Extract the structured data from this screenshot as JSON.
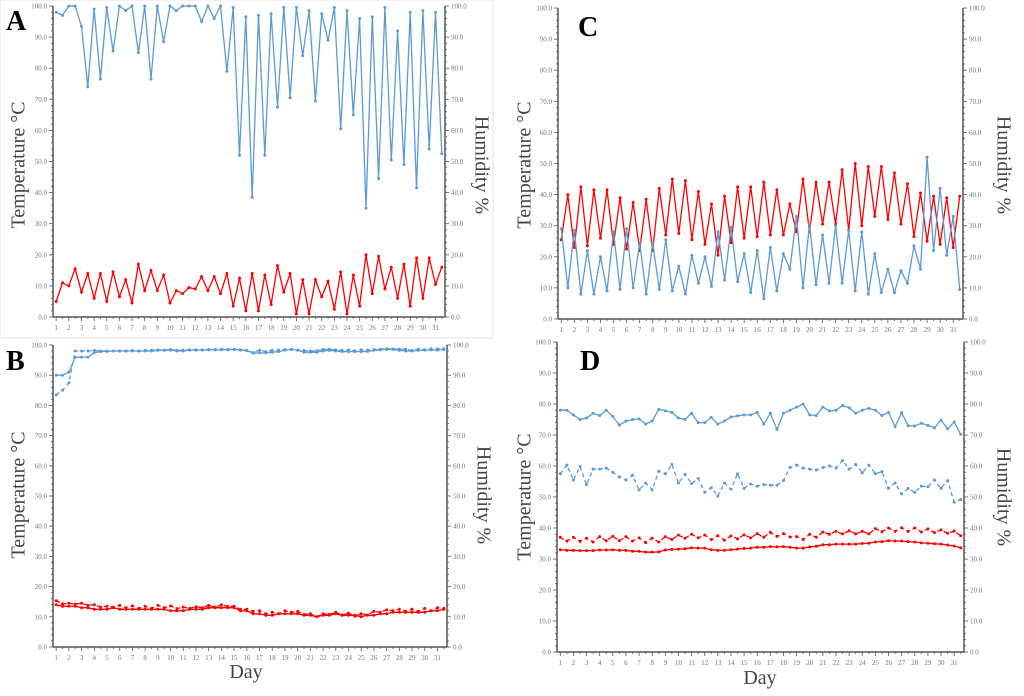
{
  "colors": {
    "humidity": "#5b9bd5",
    "temperature": "#ff0000",
    "axis": "#555555"
  },
  "chart_data": [
    {
      "panel": "A",
      "type": "line",
      "ylabel_left": "Temperature °C",
      "ylabel_right": "Humidity %",
      "xlabel": "",
      "ylim_left": [
        0,
        100
      ],
      "ylim_right": [
        0,
        100
      ],
      "yticks": [
        "0.0",
        "10.0",
        "20.0",
        "30.0",
        "40.0",
        "50.0",
        "60.0",
        "70.0",
        "80.0",
        "90.0",
        "100.0"
      ],
      "x_ticks": [
        1,
        2,
        3,
        4,
        5,
        6,
        7,
        8,
        9,
        10,
        11,
        12,
        13,
        14,
        15,
        16,
        17,
        18,
        19,
        20,
        21,
        22,
        23,
        24,
        25,
        26,
        27,
        28,
        29,
        30,
        31
      ],
      "x_step": 0.5,
      "series": [
        {
          "color": "humidity",
          "style": "solid",
          "axis": "right",
          "values": [
            98,
            97,
            100,
            100,
            93.5,
            74,
            99,
            76.5,
            99.5,
            85.5,
            100,
            98.5,
            100,
            85,
            100,
            76.5,
            100,
            88.5,
            100,
            98.5,
            100,
            100,
            100,
            95,
            100,
            96,
            100,
            79,
            99.5,
            52,
            96.5,
            38.5,
            97,
            52,
            97.5,
            67.5,
            99.5,
            70.5,
            99.5,
            84,
            98.5,
            69.5,
            97.5,
            89,
            99.5,
            60.5,
            98.5,
            65,
            96,
            35,
            96.5,
            44.5,
            99.5,
            50.5,
            92,
            49,
            98,
            41.5,
            98.5,
            54,
            98,
            52.5
          ]
        },
        {
          "color": "temperature",
          "style": "solid",
          "axis": "left",
          "values": [
            5,
            11,
            10,
            15.5,
            8,
            14,
            6,
            14,
            5,
            14.5,
            6.5,
            12,
            4.5,
            17,
            8.5,
            15,
            8.5,
            13.5,
            4.5,
            8.5,
            7.5,
            9.5,
            9,
            13,
            8.5,
            13,
            7.5,
            14,
            3.5,
            12.5,
            2,
            14,
            2,
            13.5,
            4,
            16.5,
            8,
            14,
            1,
            12,
            1,
            12,
            6.5,
            11.5,
            2.5,
            14.5,
            1,
            13.5,
            3.5,
            20,
            7.5,
            19.5,
            9,
            16,
            6,
            17,
            3.5,
            19,
            6,
            19,
            10.5,
            16
          ]
        }
      ]
    },
    {
      "panel": "B",
      "type": "line",
      "ylabel_left": "Temperature °C",
      "ylabel_right": "Humidity %",
      "xlabel": "Day",
      "ylim_left": [
        0,
        100
      ],
      "ylim_right": [
        0,
        100
      ],
      "yticks": [
        "0.0",
        "10.0",
        "20.0",
        "30.0",
        "40.0",
        "50.0",
        "60.0",
        "70.0",
        "80.0",
        "90.0",
        "100.0"
      ],
      "x_ticks": [
        1,
        2,
        3,
        4,
        5,
        6,
        7,
        8,
        9,
        10,
        11,
        12,
        13,
        14,
        15,
        16,
        17,
        18,
        19,
        20,
        21,
        22,
        23,
        24,
        25,
        26,
        27,
        28,
        29,
        30,
        31
      ],
      "x_step": 0.5,
      "series": [
        {
          "color": "humidity",
          "style": "solid",
          "axis": "right",
          "values": [
            90,
            90,
            91,
            96,
            96,
            96,
            97.5,
            97.8,
            97.9,
            98,
            98,
            98,
            98,
            98,
            98,
            98,
            98.2,
            98.2,
            98.3,
            98,
            98,
            98.3,
            98.3,
            98.3,
            98.4,
            98.4,
            98.4,
            98.4,
            98.5,
            98.3,
            98.2,
            97.3,
            97.4,
            97.4,
            97.6,
            97.8,
            98.3,
            98.5,
            98.3,
            97.6,
            97.6,
            97.6,
            98,
            98.2,
            98,
            97.8,
            97.8,
            97.8,
            97.8,
            97.9,
            98.2,
            98.4,
            98.5,
            98.5,
            98.2,
            98,
            98,
            98.2,
            98.3,
            98.4,
            98.3,
            98.5
          ]
        },
        {
          "color": "humidity",
          "style": "dashed",
          "axis": "right",
          "values": [
            83.5,
            85,
            87.5,
            98,
            98,
            98,
            98.2,
            98,
            98,
            98,
            98,
            98,
            98.2,
            98,
            98.2,
            98.3,
            98.4,
            98.3,
            98.5,
            98.2,
            98.3,
            98.4,
            98.4,
            98.4,
            98.5,
            98.5,
            98.6,
            98.5,
            98.6,
            98.4,
            98.1,
            97.5,
            98.3,
            97.8,
            98.2,
            98.3,
            98.5,
            98.6,
            98.3,
            98.2,
            98,
            98.1,
            98.5,
            98.6,
            98.4,
            98.2,
            98.4,
            98.1,
            98.4,
            98.3,
            98.5,
            98.6,
            98.7,
            98.7,
            98.6,
            98.6,
            98.2,
            98.6,
            98.4,
            98.7,
            98.7,
            98.8
          ]
        },
        {
          "color": "temperature",
          "style": "solid",
          "axis": "left",
          "values": [
            14,
            13.5,
            13.5,
            13.5,
            13,
            13,
            12.5,
            12.5,
            12.5,
            13,
            12.5,
            12.5,
            12.5,
            12.5,
            12.5,
            12.5,
            12.5,
            12.5,
            12,
            12,
            12,
            12.5,
            12.5,
            12.5,
            13,
            13,
            13,
            13,
            13,
            12,
            12,
            11,
            11,
            10.5,
            10.5,
            11,
            11,
            11,
            11,
            10.5,
            10.5,
            10,
            10.5,
            10.5,
            11,
            10.5,
            10.5,
            10.5,
            10,
            10.5,
            10.5,
            11,
            11,
            11.5,
            11.5,
            11.5,
            11.5,
            11.5,
            11.5,
            12,
            12,
            12.5
          ]
        },
        {
          "color": "temperature",
          "style": "dashed",
          "axis": "left",
          "values": [
            15.3,
            14.3,
            14.5,
            14.2,
            14.5,
            13.8,
            14,
            13.2,
            13.5,
            13.2,
            13.8,
            13,
            13.6,
            12.8,
            13.5,
            12.8,
            13.8,
            13,
            13.6,
            12.7,
            13.2,
            12.8,
            13.3,
            13,
            13.8,
            13.2,
            14,
            13.4,
            13.5,
            12.5,
            12.5,
            11.8,
            12,
            11,
            11.5,
            11,
            12,
            11.5,
            11.8,
            10.8,
            11,
            10,
            11,
            10.8,
            11.5,
            10.5,
            11.2,
            10.2,
            11,
            10.6,
            11.8,
            11.5,
            12.3,
            12,
            12.5,
            11.8,
            12.5,
            11.8,
            12.8,
            12,
            13,
            12.8
          ]
        }
      ]
    },
    {
      "panel": "C",
      "type": "line",
      "ylabel_left": "Temperature °C",
      "ylabel_right": "Humidity %",
      "xlabel": "",
      "ylim_left": [
        0,
        100
      ],
      "ylim_right": [
        0,
        100
      ],
      "yticks": [
        "0.0",
        "10.0",
        "20.0",
        "30.0",
        "40.0",
        "50.0",
        "60.0",
        "70.0",
        "80.0",
        "90.0",
        "100.0"
      ],
      "x_ticks": [
        1,
        2,
        3,
        4,
        5,
        6,
        7,
        8,
        9,
        10,
        11,
        12,
        13,
        14,
        15,
        16,
        17,
        18,
        19,
        20,
        21,
        22,
        23,
        24,
        25,
        26,
        27,
        28,
        29,
        30,
        31
      ],
      "x_step": 0.5,
      "series": [
        {
          "color": "temperature",
          "style": "solid",
          "axis": "left",
          "values": [
            25.5,
            40,
            23,
            42.5,
            23.5,
            41.5,
            26,
            41.5,
            24,
            39,
            22.5,
            37.5,
            22,
            38.5,
            22,
            42,
            27,
            45,
            27.5,
            44.5,
            25.5,
            41,
            24,
            37,
            20.5,
            39.5,
            24.5,
            42.5,
            26,
            42.5,
            26.5,
            44,
            27,
            41.5,
            27,
            37,
            28,
            45,
            28,
            44,
            30.5,
            44,
            30.5,
            48,
            28.5,
            50,
            30,
            49,
            33,
            49,
            32,
            47,
            30.5,
            43.5,
            26.5,
            40.5,
            25,
            39.5,
            24,
            39,
            23,
            39.5
          ]
        },
        {
          "color": "humidity",
          "style": "solid",
          "axis": "right",
          "values": [
            29,
            10,
            28.5,
            8,
            22,
            8,
            20,
            9,
            28,
            9.5,
            29,
            10,
            24.5,
            8,
            24.5,
            9.5,
            25.5,
            9,
            17,
            8,
            20.5,
            11.5,
            20,
            10.5,
            28,
            12.5,
            29.5,
            12,
            21,
            8.5,
            22,
            6.5,
            23,
            9,
            21,
            16,
            33,
            10,
            30.5,
            11,
            27,
            11.5,
            30,
            11.5,
            28.5,
            9,
            28,
            8,
            21,
            8.5,
            16,
            8.5,
            15.5,
            11.5,
            23.5,
            16,
            52,
            22,
            42,
            20.5,
            33,
            9.5
          ]
        }
      ]
    },
    {
      "panel": "D",
      "type": "line",
      "ylabel_left": "Temperature °C",
      "ylabel_right": "Humidity %",
      "xlabel": "Day",
      "ylim_left": [
        0,
        100
      ],
      "ylim_right": [
        0,
        100
      ],
      "yticks": [
        "0.0",
        "10.0",
        "20.0",
        "30.0",
        "40.0",
        "50.0",
        "60.0",
        "70.0",
        "80.0",
        "90.0",
        "100.0"
      ],
      "x_ticks": [
        1,
        2,
        3,
        4,
        5,
        6,
        7,
        8,
        9,
        10,
        11,
        12,
        13,
        14,
        15,
        16,
        17,
        18,
        19,
        20,
        21,
        22,
        23,
        24,
        25,
        26,
        27,
        28,
        29,
        30,
        31
      ],
      "x_step": 0.5,
      "series": [
        {
          "color": "humidity",
          "style": "solid",
          "axis": "right",
          "values": [
            78,
            78,
            76.5,
            75,
            75.5,
            77,
            76.3,
            78,
            76,
            73.2,
            74.5,
            75,
            75.2,
            73.5,
            74.5,
            78.3,
            77.8,
            77.3,
            75.5,
            75,
            77,
            74,
            74,
            75.7,
            73.5,
            74.5,
            75.8,
            76.2,
            76.5,
            76.5,
            77.3,
            73.5,
            77,
            71.8,
            77,
            78,
            79,
            80,
            76.5,
            76.3,
            79,
            77.8,
            78,
            79.5,
            78.8,
            77,
            78,
            78.6,
            78,
            76.3,
            77.3,
            72.7,
            77.2,
            73,
            72.9,
            73.8,
            73.1,
            72.3,
            74.8,
            72,
            74.2,
            70.2
          ]
        },
        {
          "color": "humidity",
          "style": "dashed",
          "axis": "right",
          "values": [
            57.5,
            60.3,
            55.5,
            59.8,
            54,
            59,
            59,
            59.3,
            58,
            56.5,
            55.5,
            57,
            52.3,
            54.5,
            52.3,
            58.3,
            57.5,
            60.5,
            54.5,
            57.3,
            54.3,
            56,
            51.5,
            53,
            50.3,
            54.5,
            52.5,
            57.5,
            52.8,
            54.2,
            53.5,
            54,
            53.8,
            53.8,
            55.3,
            59.5,
            60.3,
            59.3,
            59,
            58.7,
            59.5,
            60,
            59.3,
            61.8,
            59,
            60.5,
            57.8,
            60.3,
            57.5,
            58.2,
            52.8,
            54.5,
            51,
            52.8,
            51.5,
            53.5,
            53.3,
            55.5,
            52.8,
            55.3,
            48.3,
            49.2
          ]
        },
        {
          "color": "temperature",
          "style": "dashed",
          "axis": "left",
          "values": [
            37,
            35.8,
            37,
            35.7,
            36.7,
            35.5,
            37.2,
            35.9,
            37.3,
            35.9,
            37.2,
            35.8,
            36.8,
            35.3,
            36.7,
            35.5,
            37.2,
            36.3,
            37.7,
            36.7,
            38,
            36.8,
            37.7,
            36.3,
            37.5,
            36.1,
            37.4,
            36.5,
            37.8,
            36.8,
            38.2,
            37,
            38.6,
            37.3,
            38.2,
            37.1,
            37.2,
            36.3,
            38,
            37,
            38.7,
            38,
            38.9,
            38.1,
            39.1,
            38.1,
            38.9,
            38.1,
            39.8,
            38.8,
            40,
            38.9,
            40.1,
            38.9,
            40,
            38.7,
            39.7,
            38.5,
            39.4,
            38.3,
            39,
            37.5
          ]
        },
        {
          "color": "temperature",
          "style": "solid",
          "axis": "left",
          "values": [
            33,
            32.8,
            32.8,
            32.7,
            32.7,
            32.7,
            32.9,
            32.9,
            33,
            32.8,
            32.8,
            32.5,
            32.5,
            32.2,
            32.2,
            32.3,
            32.9,
            33.1,
            33.2,
            33.3,
            33.6,
            33.5,
            33.5,
            33,
            32.8,
            32.8,
            33,
            33.2,
            33.4,
            33.5,
            33.8,
            33.8,
            34,
            33.9,
            34,
            33.8,
            33.5,
            33.5,
            33.9,
            34.1,
            34.6,
            34.6,
            34.8,
            34.8,
            34.8,
            34.8,
            35,
            35.1,
            35.5,
            35.6,
            35.9,
            35.8,
            35.8,
            35.6,
            35.5,
            35.2,
            35.1,
            34.9,
            34.8,
            34.5,
            34.2,
            33.6
          ]
        }
      ]
    }
  ]
}
